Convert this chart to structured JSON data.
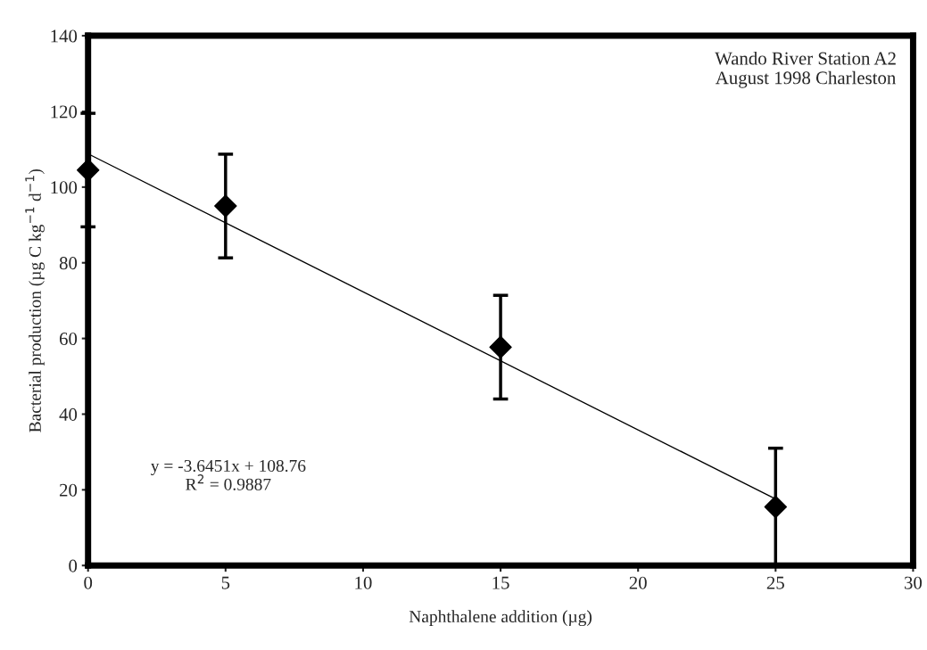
{
  "chart_data": {
    "type": "scatter",
    "xlabel": "Naphthalene addition (µg)",
    "ylabel": "Bacterial production (µg C kg$^{−1}$ d$^{−1}$)",
    "x": [
      0,
      5,
      15,
      25
    ],
    "series": [
      {
        "color": "#000000",
        "marker": "diamond",
        "values": [
          104.5,
          95,
          57.7,
          15.5
        ],
        "errors": [
          15,
          13.7,
          13.7,
          15.5
        ]
      },
      {
        "type": "line",
        "color": "#000000",
        "x": [
          0,
          25
        ],
        "values": [
          108.8,
          17.6
        ],
        "line_style": "solid"
      }
    ],
    "xlim": [
      0,
      30
    ],
    "xticks": [
      0,
      5,
      10,
      15,
      20,
      25,
      30
    ],
    "ylim": [
      0,
      140
    ],
    "yticks": [
      0,
      20,
      40,
      60,
      80,
      100,
      120,
      140
    ],
    "grid": false,
    "legend": false,
    "annotations": [
      "Wando River Station A2\nAugust 1998 Charleston",
      "y = -3.6451x + 108.76\nR$^{2}$ = 0.9887"
    ]
  }
}
